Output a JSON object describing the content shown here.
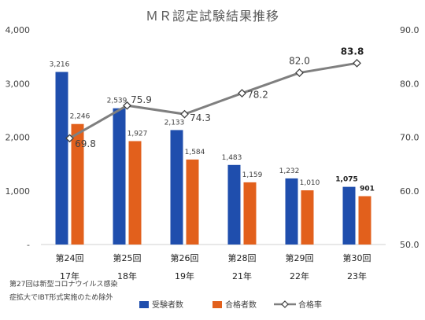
{
  "chart_data": {
    "type": "bar",
    "title": "ＭＲ認定試験結果推移",
    "categories": [
      {
        "kai": "第24回",
        "year": "17年"
      },
      {
        "kai": "第25回",
        "year": "18年"
      },
      {
        "kai": "第26回",
        "year": "19年"
      },
      {
        "kai": "第28回",
        "year": "21年"
      },
      {
        "kai": "第29回",
        "year": "22年"
      },
      {
        "kai": "第30回",
        "year": "23年"
      }
    ],
    "series": [
      {
        "name": "受験者数",
        "type": "bar",
        "axis": "left",
        "color": "#1F4EAD",
        "values": [
          3216,
          2539,
          2133,
          1483,
          1232,
          1075
        ],
        "labels": [
          "3,216",
          "2,539",
          "2,133",
          "1,483",
          "1,232",
          "1,075"
        ]
      },
      {
        "name": "合格者数",
        "type": "bar",
        "axis": "left",
        "color": "#E2601C",
        "values": [
          2246,
          1927,
          1584,
          1159,
          1010,
          901
        ],
        "labels": [
          "2,246",
          "1,927",
          "1,584",
          "1,159",
          "1,010",
          "901"
        ]
      },
      {
        "name": "合格率",
        "type": "line",
        "axis": "right",
        "color": "#7F7F7F",
        "values": [
          69.8,
          75.9,
          74.3,
          78.2,
          82.0,
          83.8
        ],
        "labels": [
          "69.8",
          "75.9",
          "74.3",
          "78.2",
          "82.0",
          "83.8"
        ]
      }
    ],
    "y_left": {
      "min": 0,
      "max": 4000,
      "ticks": [
        "-",
        "1,000",
        "2,000",
        "3,000",
        "4,000"
      ]
    },
    "y_right": {
      "min": 50,
      "max": 90,
      "ticks": [
        "50.0",
        "60.0",
        "70.0",
        "80.0",
        "90.0"
      ]
    },
    "grid": false,
    "legend_position": "bottom",
    "highlight_last": true
  },
  "note": {
    "line1": "第27回は新型コロナウイルス感染",
    "line2": "症拡大でIBT形式実施のため除外"
  }
}
